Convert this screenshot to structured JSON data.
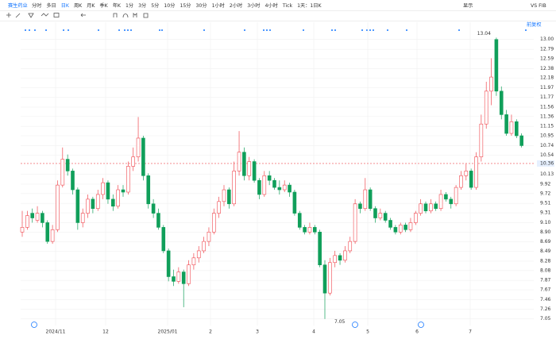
{
  "toolbar": {
    "stock": "赛生药业",
    "periods": [
      "分时",
      "多日",
      "日K",
      "周K",
      "月K",
      "季K",
      "年K",
      "1分",
      "3分",
      "5分",
      "10分",
      "15分",
      "30分",
      "1小时",
      "2小时",
      "3小时",
      "4小时",
      "Tick",
      "1天：1日K"
    ],
    "selected_period": "日K",
    "right_items": [
      "显示",
      "VS FIB"
    ],
    "adjust": "前复权"
  },
  "chart_data": {
    "type": "candlestick",
    "up_color": "#f0484f",
    "down_color": "#109f5a",
    "x_labels": [
      "2024/11",
      "12",
      "2025/01",
      "2",
      "3",
      "4",
      "5",
      "6",
      "7"
    ],
    "candles": [
      [
        8.9,
        9.35,
        8.8,
        9.0
      ],
      [
        9.0,
        9.35,
        8.95,
        9.25
      ],
      [
        9.3,
        9.4,
        9.1,
        9.2
      ],
      [
        9.15,
        9.45,
        9.1,
        9.3
      ],
      [
        9.3,
        9.35,
        9.0,
        9.1
      ],
      [
        9.1,
        9.15,
        8.65,
        8.7
      ],
      [
        8.7,
        9.05,
        8.65,
        8.95
      ],
      [
        8.95,
        10.0,
        8.9,
        9.9
      ],
      [
        9.9,
        10.7,
        9.85,
        10.45
      ],
      [
        10.45,
        10.55,
        10.1,
        10.2
      ],
      [
        10.2,
        10.25,
        9.7,
        9.8
      ],
      [
        9.8,
        9.85,
        8.95,
        9.1
      ],
      [
        9.1,
        9.4,
        9.0,
        9.3
      ],
      [
        9.3,
        9.7,
        9.2,
        9.6
      ],
      [
        9.6,
        9.65,
        9.3,
        9.4
      ],
      [
        9.4,
        9.8,
        9.35,
        9.7
      ],
      [
        9.7,
        10.05,
        9.6,
        9.95
      ],
      [
        9.95,
        10.0,
        9.5,
        9.6
      ],
      [
        9.6,
        9.7,
        9.35,
        9.45
      ],
      [
        9.45,
        9.9,
        9.4,
        9.8
      ],
      [
        9.8,
        9.9,
        9.65,
        9.75
      ],
      [
        9.75,
        10.4,
        9.7,
        10.3
      ],
      [
        10.3,
        10.7,
        10.2,
        10.5
      ],
      [
        10.5,
        11.35,
        10.4,
        10.9
      ],
      [
        10.9,
        10.95,
        10.0,
        10.1
      ],
      [
        10.1,
        10.15,
        9.4,
        9.5
      ],
      [
        9.5,
        9.6,
        9.2,
        9.3
      ],
      [
        9.3,
        9.4,
        8.95,
        9.0
      ],
      [
        9.0,
        9.05,
        8.45,
        8.5
      ],
      [
        8.5,
        8.55,
        7.85,
        7.95
      ],
      [
        7.95,
        8.1,
        7.75,
        7.85
      ],
      [
        7.85,
        8.15,
        7.8,
        8.05
      ],
      [
        8.05,
        8.1,
        7.3,
        7.8
      ],
      [
        7.8,
        8.3,
        7.75,
        8.2
      ],
      [
        8.2,
        8.45,
        8.1,
        8.35
      ],
      [
        8.35,
        8.6,
        8.25,
        8.5
      ],
      [
        8.5,
        8.8,
        8.45,
        8.7
      ],
      [
        8.7,
        9.0,
        8.6,
        8.9
      ],
      [
        8.9,
        9.4,
        8.85,
        9.3
      ],
      [
        9.3,
        9.65,
        9.2,
        9.55
      ],
      [
        9.55,
        9.9,
        9.45,
        9.8
      ],
      [
        9.8,
        9.85,
        9.4,
        9.5
      ],
      [
        9.5,
        10.4,
        9.45,
        10.2
      ],
      [
        10.2,
        11.05,
        10.1,
        10.6
      ],
      [
        10.6,
        10.7,
        10.0,
        10.1
      ],
      [
        10.1,
        10.5,
        10.0,
        10.4
      ],
      [
        10.4,
        10.45,
        9.95,
        10.0
      ],
      [
        10.0,
        10.05,
        9.6,
        9.7
      ],
      [
        9.7,
        10.2,
        9.65,
        10.1
      ],
      [
        10.1,
        10.2,
        9.9,
        10.0
      ],
      [
        10.0,
        10.05,
        9.8,
        9.85
      ],
      [
        9.85,
        10.0,
        9.7,
        9.8
      ],
      [
        9.8,
        10.0,
        9.75,
        9.9
      ],
      [
        9.9,
        9.95,
        9.65,
        9.75
      ],
      [
        9.75,
        9.8,
        9.25,
        9.3
      ],
      [
        9.3,
        9.35,
        8.95,
        9.0
      ],
      [
        9.0,
        9.05,
        8.85,
        8.9
      ],
      [
        8.9,
        9.1,
        8.85,
        9.0
      ],
      [
        9.0,
        9.05,
        8.85,
        8.9
      ],
      [
        8.9,
        8.95,
        8.15,
        8.2
      ],
      [
        8.2,
        8.3,
        7.05,
        7.6
      ],
      [
        7.6,
        8.35,
        7.55,
        8.25
      ],
      [
        8.25,
        8.5,
        8.15,
        8.4
      ],
      [
        8.4,
        8.45,
        8.2,
        8.3
      ],
      [
        8.3,
        8.6,
        8.25,
        8.5
      ],
      [
        8.5,
        8.8,
        8.45,
        8.7
      ],
      [
        8.7,
        9.6,
        8.65,
        9.5
      ],
      [
        9.5,
        9.55,
        9.3,
        9.4
      ],
      [
        9.4,
        10.05,
        9.35,
        9.8
      ],
      [
        9.8,
        9.85,
        9.35,
        9.4
      ],
      [
        9.4,
        9.45,
        9.1,
        9.2
      ],
      [
        9.2,
        9.4,
        9.15,
        9.3
      ],
      [
        9.3,
        9.35,
        9.1,
        9.15
      ],
      [
        9.15,
        9.2,
        8.95,
        9.0
      ],
      [
        9.0,
        9.05,
        8.85,
        8.9
      ],
      [
        8.9,
        9.1,
        8.85,
        9.05
      ],
      [
        9.05,
        9.1,
        8.9,
        8.95
      ],
      [
        8.95,
        9.2,
        8.9,
        9.1
      ],
      [
        9.1,
        9.35,
        9.05,
        9.3
      ],
      [
        9.3,
        9.6,
        9.25,
        9.5
      ],
      [
        9.5,
        9.55,
        9.3,
        9.35
      ],
      [
        9.35,
        9.6,
        9.3,
        9.5
      ],
      [
        9.5,
        9.55,
        9.35,
        9.4
      ],
      [
        9.4,
        9.8,
        9.35,
        9.7
      ],
      [
        9.7,
        9.75,
        9.55,
        9.6
      ],
      [
        9.6,
        9.65,
        9.4,
        9.5
      ],
      [
        9.5,
        9.9,
        9.45,
        9.85
      ],
      [
        9.85,
        10.2,
        9.8,
        10.1
      ],
      [
        10.1,
        10.35,
        10.0,
        10.2
      ],
      [
        10.2,
        10.25,
        9.8,
        9.85
      ],
      [
        9.85,
        10.6,
        9.8,
        10.5
      ],
      [
        10.5,
        11.4,
        10.4,
        11.2
      ],
      [
        11.2,
        12.1,
        11.1,
        11.9
      ],
      [
        11.9,
        12.6,
        11.6,
        12.2
      ],
      [
        13.0,
        13.04,
        11.8,
        11.9
      ],
      [
        11.9,
        12.0,
        11.3,
        11.4
      ],
      [
        11.4,
        11.5,
        10.95,
        11.0
      ],
      [
        11.0,
        11.4,
        10.95,
        11.25
      ],
      [
        11.25,
        11.3,
        10.9,
        10.95
      ],
      [
        10.95,
        11.0,
        10.7,
        10.74
      ]
    ],
    "ylim": [
      6.91,
      13.08
    ],
    "yticks": [
      {
        "value": 13,
        "label": "13.00"
      },
      12.79,
      12.59,
      12.38,
      12.18,
      11.97,
      11.77,
      11.56,
      11.36,
      11.15,
      10.95,
      10.74,
      10.54,
      10.13,
      9.92,
      9.72,
      9.51,
      9.31,
      {
        "value": 9.1,
        "label": "9.10"
      },
      {
        "value": 8.9,
        "label": "8.90"
      },
      8.69,
      8.49,
      8.28,
      8.08,
      7.87,
      7.67,
      7.46,
      7.26,
      7.05
    ],
    "last_price": 10.36,
    "max_label": 13.04,
    "min_label": 7.05,
    "grid": true
  }
}
